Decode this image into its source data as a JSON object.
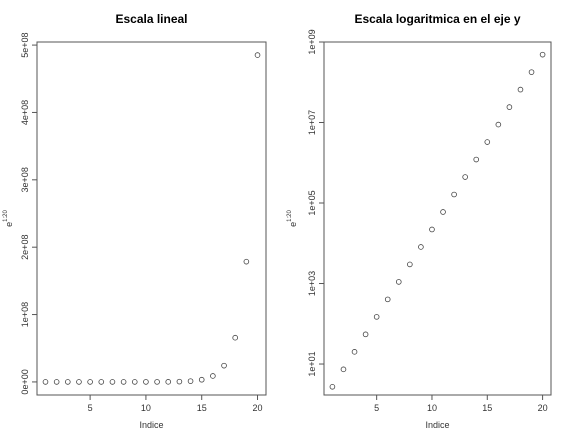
{
  "chart_data": [
    {
      "type": "scatter",
      "title": "Escala lineal",
      "xlabel": "Indice",
      "ylabel_base": "e",
      "ylabel_exp": "1:20",
      "yscale": "linear",
      "x": [
        1,
        2,
        3,
        4,
        5,
        6,
        7,
        8,
        9,
        10,
        11,
        12,
        13,
        14,
        15,
        16,
        17,
        18,
        19,
        20
      ],
      "y": [
        2.718281828,
        7.389056099,
        20.08553692,
        54.59815003,
        148.4131591,
        403.4287935,
        1096.633158,
        2980.957987,
        8103.083928,
        22026.46579,
        59874.14172,
        162754.7914,
        442413.392,
        1202604.284,
        3269017.372,
        8886110.521,
        24154952.75,
        65659969.14,
        178482301.0,
        485165195.4
      ],
      "xlim": [
        0.24,
        20.76
      ],
      "ylim": [
        -19406605,
        504571803
      ],
      "xticks": [
        5,
        10,
        15,
        20
      ],
      "xtick_labels": [
        "5",
        "10",
        "15",
        "20"
      ],
      "yticks": [
        0,
        100000000,
        200000000,
        300000000,
        400000000,
        500000000
      ],
      "ytick_labels": [
        "0e+00",
        "1e+08",
        "2e+08",
        "3e+08",
        "4e+08",
        "5e+08"
      ]
    },
    {
      "type": "scatter",
      "title": "Escala logaritmica en el eje y",
      "xlabel": "Indice",
      "ylabel_base": "e",
      "ylabel_exp": "1:20",
      "yscale": "log10",
      "x": [
        1,
        2,
        3,
        4,
        5,
        6,
        7,
        8,
        9,
        10,
        11,
        12,
        13,
        14,
        15,
        16,
        17,
        18,
        19,
        20
      ],
      "y": [
        2.718281828,
        7.389056099,
        20.08553692,
        54.59815003,
        148.4131591,
        403.4287935,
        1096.633158,
        2980.957987,
        8103.083928,
        22026.46579,
        59874.14172,
        162754.7914,
        442413.392,
        1202604.284,
        3269017.372,
        8886110.521,
        24154952.75,
        65659969.14,
        178482301.0,
        485165195.4
      ],
      "xlim": [
        0.24,
        20.76
      ],
      "ylim": [
        1.7,
        1000000000
      ],
      "xticks": [
        5,
        10,
        15,
        20
      ],
      "xtick_labels": [
        "5",
        "10",
        "15",
        "20"
      ],
      "yticks": [
        10,
        1000,
        100000,
        10000000,
        1000000000
      ],
      "ytick_labels": [
        "1e+01",
        "1e+03",
        "1e+05",
        "1e+07",
        "1e+09"
      ]
    }
  ]
}
